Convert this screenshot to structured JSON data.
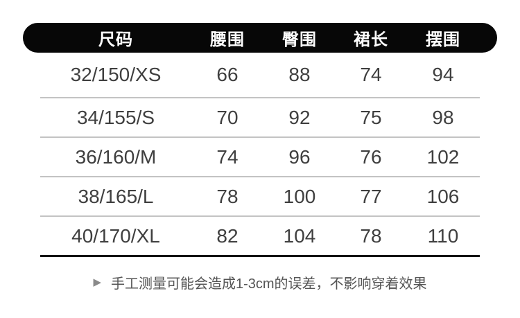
{
  "colors": {
    "header_bg": "#070707",
    "header_text": "#ffffff",
    "body_text": "#3f3f3f",
    "divider": "#c3c3c3",
    "bottom_rule": "#141414",
    "note_text": "#555555",
    "note_icon": "#8a8a8a",
    "background": "#ffffff"
  },
  "table": {
    "columns": [
      "尺码",
      "腰围",
      "臀围",
      "裙长",
      "摆围"
    ],
    "rows": [
      {
        "size": "32/150/XS",
        "waist": "66",
        "hip": "88",
        "skirt_length": "74",
        "hem": "94"
      },
      {
        "size": "34/155/S",
        "waist": "70",
        "hip": "92",
        "skirt_length": "75",
        "hem": "98"
      },
      {
        "size": "36/160/M",
        "waist": "74",
        "hip": "96",
        "skirt_length": "76",
        "hem": "102"
      },
      {
        "size": "38/165/L",
        "waist": "78",
        "hip": "100",
        "skirt_length": "77",
        "hem": "106"
      },
      {
        "size": "40/170/XL",
        "waist": "82",
        "hip": "104",
        "skirt_length": "78",
        "hem": "110"
      }
    ]
  },
  "note": {
    "icon": "▶",
    "text": "手工测量可能会造成1-3cm的误差，不影响穿着效果"
  },
  "chart_data": {
    "type": "table",
    "title": "",
    "columns": [
      "尺码",
      "腰围",
      "臀围",
      "裙长",
      "摆围"
    ],
    "rows": [
      [
        "32/150/XS",
        66,
        88,
        74,
        94
      ],
      [
        "34/155/S",
        70,
        92,
        75,
        98
      ],
      [
        "36/160/M",
        74,
        96,
        76,
        102
      ],
      [
        "38/165/L",
        78,
        100,
        77,
        106
      ],
      [
        "40/170/XL",
        82,
        104,
        78,
        110
      ]
    ],
    "units": "cm",
    "note": "手工测量可能会造成1-3cm的误差，不影响穿着效果",
    "layout": {
      "header_style": "black-pill",
      "row_dividers": true,
      "bottom_rule": true
    }
  }
}
